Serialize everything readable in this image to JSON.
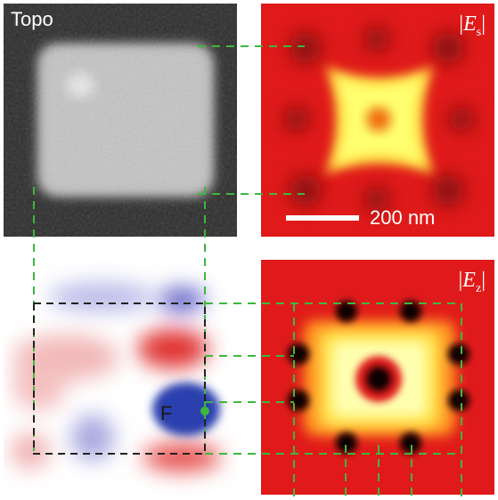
{
  "panels": {
    "topo": {
      "label": "Topo"
    },
    "es": {
      "label": "|E_s|",
      "label_prefix": "|",
      "label_var": "E",
      "label_sub": "s",
      "label_suffix": "|"
    },
    "ez": {
      "label": "|E_z|",
      "label_prefix": "|",
      "label_var": "E",
      "label_sub": "z",
      "label_suffix": "|"
    },
    "phase": {
      "marker_label": "F"
    }
  },
  "scale_bar": {
    "label": "200 nm"
  },
  "colors": {
    "guide_line": "#3db83d",
    "frame_line": "#222222",
    "topo_bg": "#2e2e2e",
    "field_red": "#e01a1a",
    "field_hot": "#ffff60",
    "phase_blue": "#2a3fae",
    "phase_red": "#e02a2a"
  }
}
